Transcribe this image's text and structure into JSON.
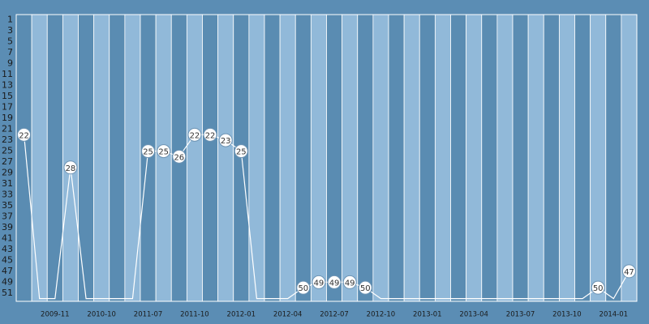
{
  "chart_data": {
    "type": "line",
    "categories": [
      null,
      null,
      "2009-11",
      null,
      null,
      "2010-10",
      null,
      null,
      "2011-07",
      null,
      null,
      "2011-10",
      null,
      null,
      "2012-01",
      null,
      null,
      "2012-04",
      null,
      null,
      "2012-07",
      null,
      null,
      "2012-10",
      null,
      null,
      "2013-01",
      null,
      null,
      "2013-04",
      null,
      null,
      "2013-07",
      null,
      null,
      "2013-10",
      null,
      null,
      "2014-01",
      null
    ],
    "series": [
      {
        "color": "#ffffff",
        "values": [
          22,
          52,
          52,
          28,
          52,
          52,
          52,
          52,
          25,
          25,
          26,
          22,
          22,
          23,
          25,
          52,
          52,
          52,
          50,
          49,
          49,
          49,
          50,
          52,
          52,
          52,
          52,
          52,
          52,
          52,
          52,
          52,
          52,
          52,
          52,
          52,
          52,
          50,
          52,
          47
        ],
        "value_labels": [
          "22",
          null,
          null,
          "28",
          null,
          null,
          null,
          null,
          "25",
          "25",
          "26",
          "22",
          "22",
          "23",
          "25",
          null,
          null,
          null,
          "50",
          "49",
          "49",
          "49",
          "50",
          null,
          null,
          null,
          null,
          null,
          null,
          null,
          null,
          null,
          null,
          null,
          null,
          null,
          null,
          "50",
          null,
          "47"
        ]
      }
    ],
    "ylim": [
      0,
      52.5
    ],
    "y_inverted": true,
    "yticks": [
      1,
      3,
      5,
      7,
      9,
      11,
      13,
      15,
      17,
      19,
      21,
      23,
      25,
      27,
      29,
      31,
      33,
      35,
      37,
      39,
      41,
      43,
      45,
      47,
      49,
      51
    ],
    "stripe_colors": [
      "#5a8cb2",
      "#91b9d9"
    ]
  }
}
